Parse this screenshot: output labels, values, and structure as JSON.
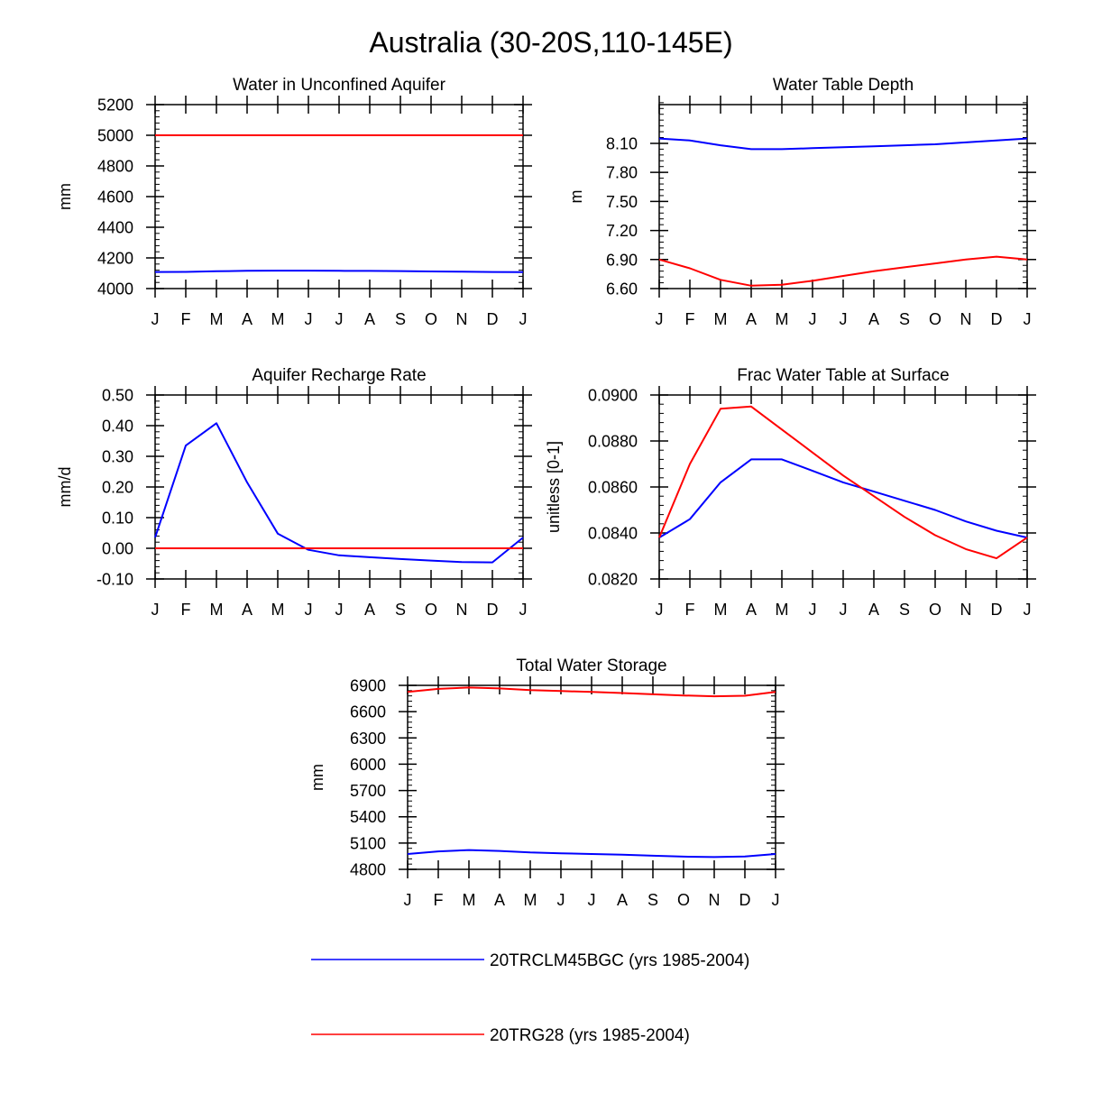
{
  "figure_title": "Australia (30-20S,110-145E)",
  "months": [
    "J",
    "F",
    "M",
    "A",
    "M",
    "J",
    "J",
    "A",
    "S",
    "O",
    "N",
    "D",
    "J"
  ],
  "series_names": [
    "20TRCLM45BGC (yrs 1985-2004)",
    "20TRG28 (yrs 1985-2004)"
  ],
  "colors": {
    "blue": "#0000ff",
    "red": "#ff0000",
    "axis": "#000000"
  },
  "chart_data": [
    {
      "type": "line",
      "title": "Water in Unconfined Aquifer",
      "ylabel": "mm",
      "ylim": [
        4000,
        5200
      ],
      "yticks": [
        4000,
        4200,
        4400,
        4600,
        4800,
        5000,
        5200
      ],
      "ytick_labels": [
        "4000",
        "4200",
        "4400",
        "4600",
        "4800",
        "5000",
        "5200"
      ],
      "categories": [
        "J",
        "F",
        "M",
        "A",
        "M",
        "J",
        "J",
        "A",
        "S",
        "O",
        "N",
        "D",
        "J"
      ],
      "series": [
        {
          "name": "20TRCLM45BGC (yrs 1985-2004)",
          "color": "#0000ff",
          "values": [
            4108,
            4109,
            4113,
            4116,
            4117,
            4117,
            4116,
            4115,
            4114,
            4112,
            4110,
            4108,
            4107
          ]
        },
        {
          "name": "20TRG28 (yrs 1985-2004)",
          "color": "#ff0000",
          "values": [
            5000,
            5000,
            5000,
            5000,
            5000,
            5000,
            5000,
            5000,
            5000,
            5000,
            5000,
            5000,
            5000
          ]
        }
      ]
    },
    {
      "type": "line",
      "title": "Water Table Depth",
      "ylabel": "m",
      "ylim": [
        6.6,
        8.5
      ],
      "yticks": [
        6.6,
        6.9,
        7.2,
        7.5,
        7.8,
        8.1
      ],
      "ytick_labels": [
        "6.60",
        "6.90",
        "7.20",
        "7.50",
        "7.80",
        "8.10"
      ],
      "categories": [
        "J",
        "F",
        "M",
        "A",
        "M",
        "J",
        "J",
        "A",
        "S",
        "O",
        "N",
        "D",
        "J"
      ],
      "series": [
        {
          "name": "20TRCLM45BGC (yrs 1985-2004)",
          "color": "#0000ff",
          "values": [
            8.15,
            8.13,
            8.08,
            8.04,
            8.04,
            8.05,
            8.06,
            8.07,
            8.08,
            8.09,
            8.11,
            8.13,
            8.15
          ]
        },
        {
          "name": "20TRG28 (yrs 1985-2004)",
          "color": "#ff0000",
          "values": [
            6.9,
            6.81,
            6.69,
            6.63,
            6.64,
            6.68,
            6.73,
            6.78,
            6.82,
            6.86,
            6.9,
            6.93,
            6.9
          ]
        }
      ]
    },
    {
      "type": "line",
      "title": "Aquifer Recharge Rate",
      "ylabel": "mm/d",
      "ylim": [
        -0.1,
        0.5
      ],
      "yticks": [
        -0.1,
        0.0,
        0.1,
        0.2,
        0.3,
        0.4,
        0.5
      ],
      "ytick_labels": [
        "-0.10",
        "0.00",
        "0.10",
        "0.20",
        "0.30",
        "0.40",
        "0.50"
      ],
      "categories": [
        "J",
        "F",
        "M",
        "A",
        "M",
        "J",
        "J",
        "A",
        "S",
        "O",
        "N",
        "D",
        "J"
      ],
      "series": [
        {
          "name": "20TRCLM45BGC (yrs 1985-2004)",
          "color": "#0000ff",
          "values": [
            0.035,
            0.335,
            0.408,
            0.215,
            0.048,
            -0.005,
            -0.023,
            -0.029,
            -0.035,
            -0.04,
            -0.045,
            -0.046,
            0.035
          ]
        },
        {
          "name": "20TRG28 (yrs 1985-2004)",
          "color": "#ff0000",
          "values": [
            0,
            0,
            0,
            0,
            0,
            0,
            0,
            0,
            0,
            0,
            0,
            0,
            0
          ]
        }
      ]
    },
    {
      "type": "line",
      "title": "Frac Water Table at Surface",
      "ylabel": "unitless [0-1]",
      "ylim": [
        0.082,
        0.09
      ],
      "yticks": [
        0.082,
        0.084,
        0.086,
        0.088,
        0.09
      ],
      "ytick_labels": [
        "0.0820",
        "0.0840",
        "0.0860",
        "0.0880",
        "0.0900"
      ],
      "categories": [
        "J",
        "F",
        "M",
        "A",
        "M",
        "J",
        "J",
        "A",
        "S",
        "O",
        "N",
        "D",
        "J"
      ],
      "series": [
        {
          "name": "20TRCLM45BGC (yrs 1985-2004)",
          "color": "#0000ff",
          "values": [
            0.0838,
            0.0846,
            0.0862,
            0.0872,
            0.0872,
            0.0867,
            0.0862,
            0.0858,
            0.0854,
            0.085,
            0.0845,
            0.0841,
            0.0838
          ]
        },
        {
          "name": "20TRG28 (yrs 1985-2004)",
          "color": "#ff0000",
          "values": [
            0.0838,
            0.087,
            0.0894,
            0.0895,
            0.0885,
            0.0875,
            0.0865,
            0.0856,
            0.0847,
            0.0839,
            0.0833,
            0.0829,
            0.0838
          ]
        }
      ]
    },
    {
      "type": "line",
      "title": "Total Water Storage",
      "ylabel": "mm",
      "ylim": [
        4800,
        6900
      ],
      "yticks": [
        4800,
        5100,
        5400,
        5700,
        6000,
        6300,
        6600,
        6900
      ],
      "ytick_labels": [
        "4800",
        "5100",
        "5400",
        "5700",
        "6000",
        "6300",
        "6600",
        "6900"
      ],
      "categories": [
        "J",
        "F",
        "M",
        "A",
        "M",
        "J",
        "J",
        "A",
        "S",
        "O",
        "N",
        "D",
        "J"
      ],
      "series": [
        {
          "name": "20TRCLM45BGC (yrs 1985-2004)",
          "color": "#0000ff",
          "values": [
            4975,
            5005,
            5020,
            5010,
            4993,
            4983,
            4975,
            4967,
            4955,
            4945,
            4940,
            4947,
            4975
          ]
        },
        {
          "name": "20TRG28 (yrs 1985-2004)",
          "color": "#ff0000",
          "values": [
            6825,
            6860,
            6875,
            6865,
            6845,
            6835,
            6825,
            6812,
            6798,
            6785,
            6775,
            6782,
            6825
          ]
        }
      ]
    }
  ]
}
